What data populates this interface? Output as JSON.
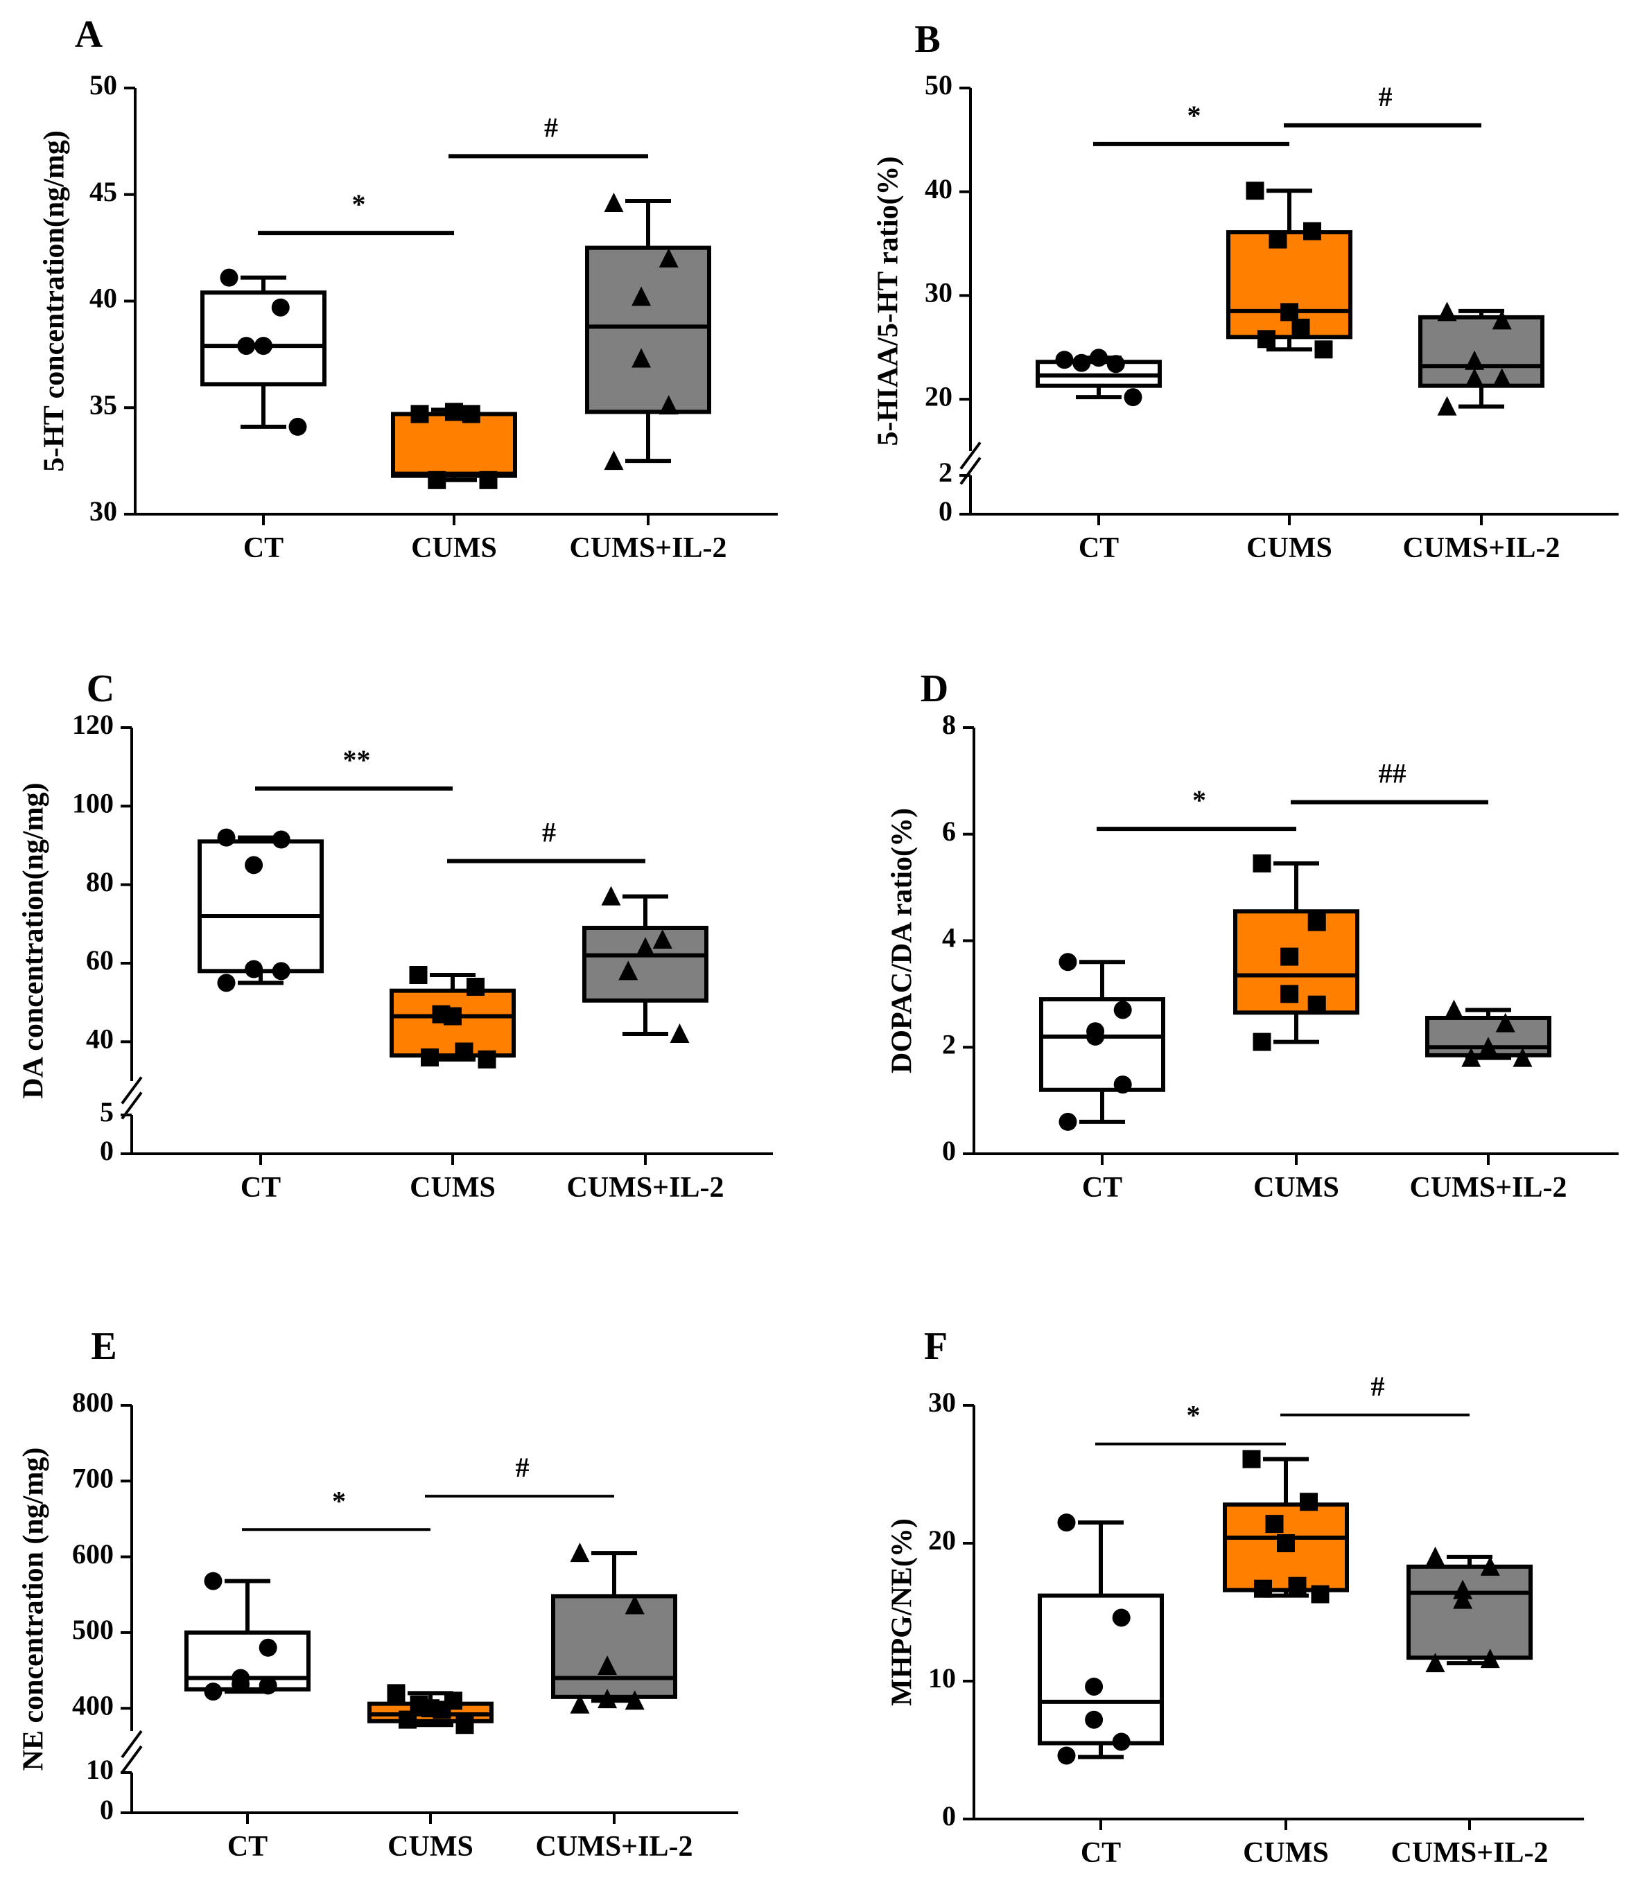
{
  "figure": {
    "groups": [
      "CT",
      "CUMS",
      "CUMS+IL-2"
    ],
    "colors": {
      "CT": "#ffffff",
      "CUMS": "#ff8000",
      "CUMS+IL-2": "#808080",
      "stroke": "#000000"
    },
    "markers": {
      "CT": "circle",
      "CUMS": "square",
      "CUMS+IL-2": "triangle"
    }
  },
  "chart_data": [
    {
      "panel": "A",
      "type": "box",
      "ylabel": "5-HT concentration(ng/mg)",
      "ylim": [
        30,
        50
      ],
      "yticks": [
        30,
        35,
        40,
        45,
        50
      ],
      "axis_break": null,
      "categories": [
        "CT",
        "CUMS",
        "CUMS+IL-2"
      ],
      "boxes": [
        {
          "min": 34.1,
          "q1": 36.1,
          "median": 37.9,
          "q3": 40.4,
          "max": 41.1
        },
        {
          "min": 31.6,
          "q1": 31.8,
          "median": 31.9,
          "q3": 34.7,
          "max": 34.9
        },
        {
          "min": 32.5,
          "q1": 34.8,
          "median": 38.8,
          "q3": 42.5,
          "max": 44.7
        }
      ],
      "points": [
        [
          41.1,
          39.7,
          37.9,
          37.9,
          34.1
        ],
        [
          34.7,
          34.7,
          34.8,
          31.6,
          31.6
        ],
        [
          44.6,
          42.0,
          40.2,
          37.3,
          35.1,
          32.5
        ]
      ],
      "significance": [
        {
          "label": "*",
          "from": 0,
          "to": 1,
          "y": 43.2
        },
        {
          "label": "#",
          "from": 1,
          "to": 2,
          "y": 46.8
        }
      ]
    },
    {
      "panel": "B",
      "type": "box",
      "ylabel": "5-HIAA/5-HT ratio(%)",
      "ylim": [
        0,
        50
      ],
      "yticks": [
        0,
        2,
        20,
        30,
        40,
        50
      ],
      "axis_break": {
        "lower": [
          0,
          2
        ],
        "upper": [
          15,
          50
        ]
      },
      "categories": [
        "CT",
        "CUMS",
        "CUMS+IL-2"
      ],
      "boxes": [
        {
          "min": 20.2,
          "q1": 21.3,
          "median": 22.3,
          "q3": 23.6,
          "max": 24.0
        },
        {
          "min": 24.8,
          "q1": 26.0,
          "median": 28.5,
          "q3": 36.1,
          "max": 40.1
        },
        {
          "min": 19.3,
          "q1": 21.3,
          "median": 23.2,
          "q3": 27.9,
          "max": 28.5
        }
      ],
      "points": [
        [
          23.8,
          23.4,
          24.0,
          23.5,
          20.2
        ],
        [
          40.1,
          36.2,
          35.4,
          28.4,
          26.9,
          25.8,
          24.8
        ],
        [
          28.4,
          27.6,
          23.7,
          22.0,
          22.0,
          19.3
        ]
      ],
      "significance": [
        {
          "label": "*",
          "from": 0,
          "to": 1,
          "y": 44.6
        },
        {
          "label": "#",
          "from": 1,
          "to": 2,
          "y": 46.4
        }
      ]
    },
    {
      "panel": "C",
      "type": "box",
      "ylabel": "DA concentration(ng/mg)",
      "ylim": [
        0,
        120
      ],
      "yticks": [
        0,
        5,
        40,
        60,
        80,
        100,
        120
      ],
      "axis_break": {
        "lower": [
          0,
          5
        ],
        "upper": [
          30,
          120
        ]
      },
      "categories": [
        "CT",
        "CUMS",
        "CUMS+IL-2"
      ],
      "boxes": [
        {
          "min": 55.0,
          "q1": 58.0,
          "median": 72.0,
          "q3": 91.0,
          "max": 92.0
        },
        {
          "min": 35.5,
          "q1": 36.5,
          "median": 46.5,
          "q3": 53.0,
          "max": 57.0
        },
        {
          "min": 42.0,
          "q1": 50.5,
          "median": 62.0,
          "q3": 69.0,
          "max": 77.0
        }
      ],
      "points": [
        [
          92.0,
          91.5,
          85.0,
          58.5,
          58.0,
          55.0
        ],
        [
          57.0,
          54.0,
          47.0,
          46.5,
          37.5,
          36.0,
          35.5
        ],
        [
          77.0,
          66.0,
          64.0,
          58.0,
          42.0
        ]
      ],
      "significance": [
        {
          "label": "**",
          "from": 0,
          "to": 1,
          "y": 104.5
        },
        {
          "label": "#",
          "from": 1,
          "to": 2,
          "y": 86.0
        }
      ]
    },
    {
      "panel": "D",
      "type": "box",
      "ylabel": "DOPAC/DA ratio(%)",
      "ylim": [
        0,
        8
      ],
      "yticks": [
        0,
        2,
        4,
        6,
        8
      ],
      "axis_break": null,
      "categories": [
        "CT",
        "CUMS",
        "CUMS+IL-2"
      ],
      "boxes": [
        {
          "min": 0.6,
          "q1": 1.2,
          "median": 2.2,
          "q3": 2.9,
          "max": 3.6
        },
        {
          "min": 2.1,
          "q1": 2.65,
          "median": 3.35,
          "q3": 4.55,
          "max": 5.45
        },
        {
          "min": 1.8,
          "q1": 1.85,
          "median": 2.0,
          "q3": 2.55,
          "max": 2.7
        }
      ],
      "points": [
        [
          3.6,
          2.7,
          2.3,
          2.2,
          1.3,
          0.6
        ],
        [
          5.45,
          4.35,
          3.7,
          3.0,
          2.8,
          2.1
        ],
        [
          2.7,
          2.45,
          2.0,
          1.8,
          1.8
        ]
      ],
      "significance": [
        {
          "label": "*",
          "from": 0,
          "to": 1,
          "y": 6.1
        },
        {
          "label": "##",
          "from": 1,
          "to": 2,
          "y": 6.6
        }
      ]
    },
    {
      "panel": "E",
      "type": "box",
      "ylabel": "NE concentration (ng/mg)",
      "ylim": [
        0,
        800
      ],
      "yticks": [
        0,
        10,
        400,
        500,
        600,
        700,
        800
      ],
      "axis_break": {
        "lower": [
          0,
          10
        ],
        "upper": [
          370,
          800
        ]
      },
      "categories": [
        "CT",
        "CUMS",
        "CUMS+IL-2"
      ],
      "boxes": [
        {
          "min": 422,
          "q1": 425,
          "median": 440,
          "q3": 500,
          "max": 568
        },
        {
          "min": 378,
          "q1": 383,
          "median": 392,
          "q3": 406,
          "max": 420
        },
        {
          "min": 410,
          "q1": 415,
          "median": 440,
          "q3": 548,
          "max": 605
        }
      ],
      "points": [
        [
          568,
          480,
          440,
          432,
          430,
          422
        ],
        [
          420,
          410,
          405,
          400,
          398,
          385,
          378
        ],
        [
          605,
          536,
          456,
          412,
          410,
          405
        ]
      ],
      "significance": [
        {
          "label": "*",
          "from": 0,
          "to": 1,
          "y": 636
        },
        {
          "label": "#",
          "from": 1,
          "to": 2,
          "y": 680
        }
      ]
    },
    {
      "panel": "F",
      "type": "box",
      "ylabel": "MHPG/NE(%)",
      "ylim": [
        0,
        30
      ],
      "yticks": [
        0,
        10,
        20,
        30
      ],
      "axis_break": null,
      "categories": [
        "CT",
        "CUMS",
        "CUMS+IL-2"
      ],
      "boxes": [
        {
          "min": 4.5,
          "q1": 5.5,
          "median": 8.5,
          "q3": 16.2,
          "max": 21.5
        },
        {
          "min": 16.2,
          "q1": 16.6,
          "median": 20.4,
          "q3": 22.8,
          "max": 26.1
        },
        {
          "min": 11.3,
          "q1": 11.7,
          "median": 16.4,
          "q3": 18.3,
          "max": 19.0
        }
      ],
      "points": [
        [
          21.5,
          14.6,
          9.6,
          7.2,
          5.6,
          4.6
        ],
        [
          26.1,
          23.0,
          21.4,
          20.0,
          16.9,
          16.7,
          16.3
        ],
        [
          19.0,
          18.3,
          16.6,
          15.9,
          11.6,
          11.3
        ]
      ],
      "significance": [
        {
          "label": "*",
          "from": 0,
          "to": 1,
          "y": 27.2
        },
        {
          "label": "#",
          "from": 1,
          "to": 2,
          "y": 29.3
        }
      ]
    }
  ]
}
